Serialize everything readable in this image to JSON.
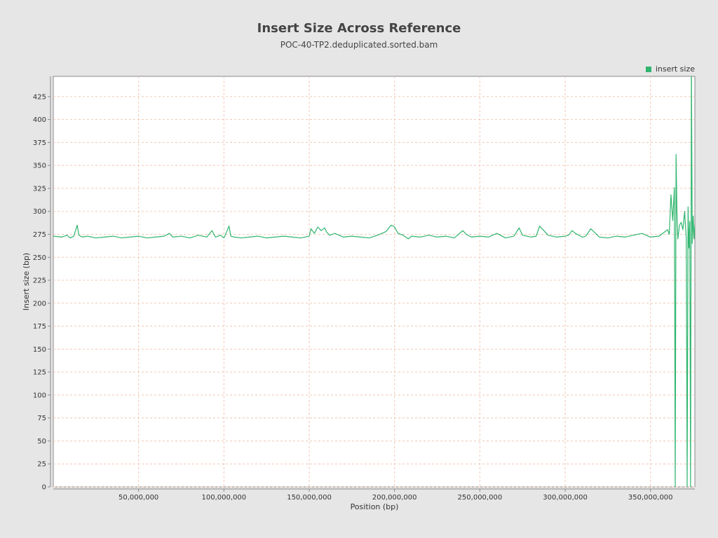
{
  "chart_data": {
    "type": "line",
    "title": "Insert Size Across Reference",
    "subtitle": "POC-40-TP2.deduplicated.sorted.bam",
    "xlabel": "Position (bp)",
    "ylabel": "Insert size (bp)",
    "xlim": [
      0,
      376000000
    ],
    "ylim": [
      0,
      447
    ],
    "x_ticks": [
      50000000,
      100000000,
      150000000,
      200000000,
      250000000,
      300000000,
      350000000
    ],
    "x_tick_labels": [
      "50,000,000",
      "100,000,000",
      "150,000,000",
      "200,000,000",
      "250,000,000",
      "300,000,000",
      "350,000,000"
    ],
    "y_ticks": [
      0,
      25,
      50,
      75,
      100,
      125,
      150,
      175,
      200,
      225,
      250,
      275,
      300,
      325,
      350,
      375,
      400,
      425
    ],
    "y_tick_labels": [
      "0",
      "25",
      "50",
      "75",
      "100",
      "125",
      "150",
      "175",
      "200",
      "225",
      "250",
      "275",
      "300",
      "325",
      "350",
      "375",
      "400",
      "425"
    ],
    "grid": true,
    "legend_position": "top-right",
    "series": [
      {
        "name": "insert size",
        "color": "#2fb56e",
        "x": [
          0,
          5000000,
          8000000,
          10000000,
          12000000,
          14000000,
          15000000,
          17000000,
          20000000,
          25000000,
          30000000,
          35000000,
          40000000,
          45000000,
          50000000,
          55000000,
          60000000,
          65000000,
          68000000,
          70000000,
          75000000,
          80000000,
          85000000,
          90000000,
          93000000,
          95000000,
          98000000,
          100000000,
          103000000,
          104000000,
          106000000,
          110000000,
          115000000,
          120000000,
          125000000,
          130000000,
          135000000,
          140000000,
          145000000,
          150000000,
          151000000,
          153000000,
          155000000,
          157000000,
          159000000,
          160000000,
          162000000,
          165000000,
          170000000,
          175000000,
          180000000,
          185000000,
          190000000,
          195000000,
          198000000,
          200000000,
          202000000,
          205000000,
          208000000,
          210000000,
          215000000,
          220000000,
          225000000,
          230000000,
          235000000,
          240000000,
          242000000,
          245000000,
          250000000,
          255000000,
          260000000,
          265000000,
          270000000,
          273000000,
          275000000,
          280000000,
          283000000,
          285000000,
          290000000,
          295000000,
          300000000,
          302000000,
          304000000,
          306000000,
          310000000,
          312000000,
          315000000,
          320000000,
          325000000,
          330000000,
          335000000,
          340000000,
          345000000,
          350000000,
          355000000,
          360000000,
          361000000,
          362000000,
          363000000,
          364000000,
          364500000,
          365000000,
          365500000,
          366000000,
          367000000,
          368000000,
          369000000,
          370000000,
          371000000,
          371500000,
          372000000,
          372500000,
          373000000,
          373500000,
          374000000,
          374500000,
          375000000,
          375500000,
          376000000
        ],
        "y": [
          273,
          272,
          274,
          271,
          273,
          285,
          274,
          272,
          273,
          271,
          272,
          273,
          271,
          272,
          273,
          271,
          272,
          273,
          276,
          272,
          273,
          271,
          274,
          272,
          279,
          272,
          274,
          271,
          284,
          273,
          272,
          271,
          272,
          273,
          271,
          272,
          273,
          272,
          271,
          273,
          281,
          276,
          283,
          279,
          282,
          278,
          274,
          276,
          272,
          273,
          272,
          271,
          274,
          278,
          285,
          283,
          276,
          274,
          270,
          273,
          272,
          274,
          272,
          273,
          271,
          279,
          275,
          272,
          273,
          272,
          276,
          271,
          273,
          282,
          274,
          272,
          273,
          284,
          274,
          272,
          273,
          274,
          279,
          276,
          272,
          273,
          281,
          272,
          271,
          273,
          272,
          274,
          276,
          272,
          273,
          280,
          275,
          318,
          290,
          326,
          0,
          362,
          300,
          270,
          285,
          288,
          280,
          300,
          270,
          0,
          305,
          260,
          289,
          0,
          460,
          265,
          295,
          270,
          285
        ]
      }
    ]
  }
}
